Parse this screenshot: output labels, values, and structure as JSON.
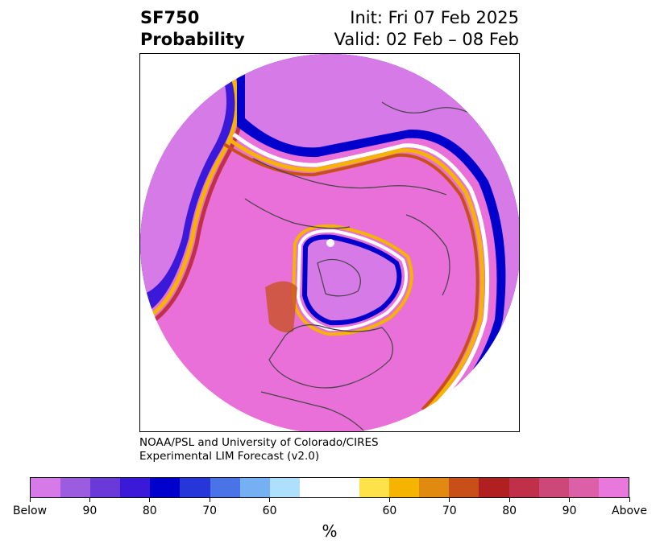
{
  "title": {
    "line1_left": "SF750",
    "line2_left": "Probability",
    "line1_right": "Init: Fri 07 Feb 2025",
    "line2_right": "Valid: 02 Feb – 08 Feb"
  },
  "credit": {
    "line1": "NOAA/PSL and University of Colorado/CIRES",
    "line2": "Experimental LIM Forecast (v2.0)"
  },
  "colorbar": {
    "label": "%",
    "colors": [
      "#d67ae8",
      "#9b5ce0",
      "#6a3ad8",
      "#3a1ad8",
      "#0000cc",
      "#2636d8",
      "#4a74e6",
      "#74b0f2",
      "#aee0fb",
      "#ffffff",
      "#ffffff",
      "#ffe24a",
      "#f4b400",
      "#e08a10",
      "#c85018",
      "#b02020",
      "#c03048",
      "#cc4878",
      "#dc60a8",
      "#e878dc"
    ],
    "ticks": [
      "Below",
      "90",
      "80",
      "70",
      "60",
      "60",
      "70",
      "80",
      "90",
      "Above"
    ],
    "tick_positions": [
      0,
      2,
      4,
      6,
      8,
      12,
      14,
      16,
      18,
      20
    ]
  },
  "map": {
    "background_color": "#e870d8",
    "marker_color": "#ffffff"
  }
}
